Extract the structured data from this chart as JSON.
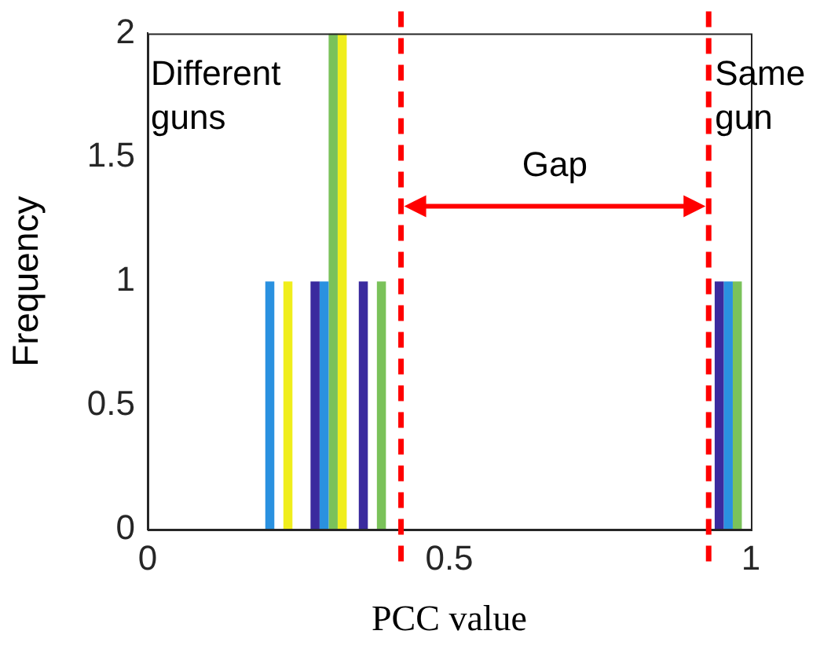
{
  "chart_data": {
    "type": "bar",
    "xlabel": "PCC value",
    "ylabel": "Frequency",
    "x": [
      0.21,
      0.3,
      0.38,
      0.97
    ],
    "series": [
      {
        "color": "#3a2a9e",
        "values": [
          0,
          1,
          1,
          1
        ]
      },
      {
        "color": "#2a91e0",
        "values": [
          1,
          1,
          0,
          1
        ]
      },
      {
        "color": "#7ac25a",
        "values": [
          0,
          2,
          1,
          1
        ]
      },
      {
        "color": "#f0ee1c",
        "values": [
          1,
          2,
          0,
          0
        ]
      }
    ],
    "xlim": [
      0,
      1
    ],
    "xticks": [
      0,
      0.5,
      1
    ],
    "ylim": [
      0,
      2
    ],
    "yticks": [
      0,
      0.5,
      1,
      1.5,
      2
    ],
    "grid": false,
    "legend": false,
    "ref_lines": [
      {
        "axis": "x",
        "value": 0.42,
        "color": "#ff0000",
        "line_style": "dashed"
      },
      {
        "axis": "x",
        "value": 0.93,
        "color": "#ff0000",
        "line_style": "dashed"
      }
    ],
    "annotations": [
      "Different guns",
      "Gap",
      "Same gun"
    ]
  }
}
